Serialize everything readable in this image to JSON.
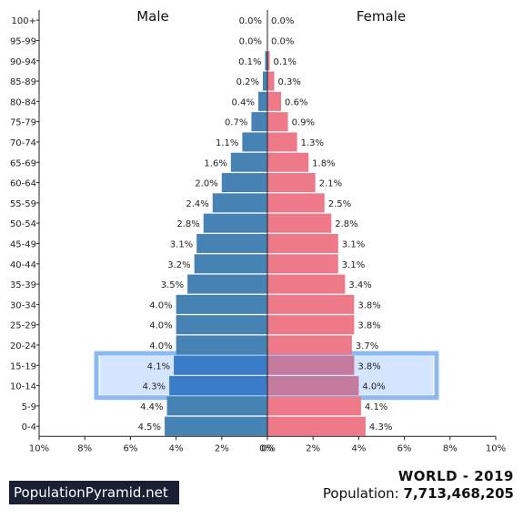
{
  "chart_data": {
    "type": "bar",
    "orientation": "population-pyramid",
    "categories": [
      "0-4",
      "5-9",
      "10-14",
      "15-19",
      "20-24",
      "25-29",
      "30-34",
      "35-39",
      "40-44",
      "45-49",
      "50-54",
      "55-59",
      "60-64",
      "65-69",
      "70-74",
      "75-79",
      "80-84",
      "85-89",
      "90-94",
      "95-99",
      "100+"
    ],
    "series": [
      {
        "name": "Male",
        "color": "#4682b4",
        "values": [
          4.5,
          4.4,
          4.3,
          4.1,
          4.0,
          4.0,
          4.0,
          3.5,
          3.2,
          3.1,
          2.8,
          2.4,
          2.0,
          1.6,
          1.1,
          0.7,
          0.4,
          0.2,
          0.1,
          0.0,
          0.0
        ],
        "labels": [
          "4.5%",
          "4.4%",
          "4.3%",
          "4.1%",
          "4.0%",
          "4.0%",
          "4.0%",
          "3.5%",
          "3.2%",
          "3.1%",
          "2.8%",
          "2.4%",
          "2.0%",
          "1.6%",
          "1.1%",
          "0.7%",
          "0.4%",
          "0.2%",
          "0.1%",
          "0.0%",
          "0.0%"
        ]
      },
      {
        "name": "Female",
        "color": "#ee7989",
        "values": [
          4.3,
          4.1,
          4.0,
          3.8,
          3.7,
          3.8,
          3.8,
          3.4,
          3.1,
          3.1,
          2.8,
          2.5,
          2.1,
          1.8,
          1.3,
          0.9,
          0.6,
          0.3,
          0.1,
          0.0,
          0.0
        ],
        "labels": [
          "4.3%",
          "4.1%",
          "4.0%",
          "3.8%",
          "3.7%",
          "3.8%",
          "3.8%",
          "3.4%",
          "3.1%",
          "3.1%",
          "2.8%",
          "2.5%",
          "2.1%",
          "1.8%",
          "1.3%",
          "0.9%",
          "0.6%",
          "0.3%",
          "0.1%",
          "0.0%",
          "0.0%"
        ]
      }
    ],
    "xlim": [
      0,
      10
    ],
    "xticks": [
      "10%",
      "8%",
      "6%",
      "4%",
      "2%",
      "0%",
      "0%",
      "2%",
      "4%",
      "6%",
      "8%",
      "10%"
    ],
    "highlighted_groups": [
      "10-14",
      "15-19"
    ],
    "highlight_color": "#cce0ff",
    "highlight_border": "#8cbaf0",
    "grid": false
  },
  "brand": "PopulationPyramid.net",
  "region_title": "WORLD - 2019",
  "population_label": "Population:",
  "population_value": "7,713,468,205"
}
